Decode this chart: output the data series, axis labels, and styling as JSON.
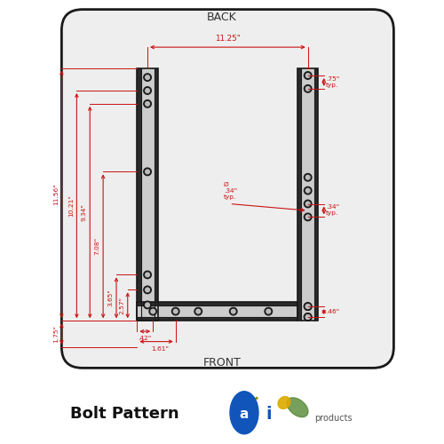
{
  "bg_color": "#ffffff",
  "dark_color": "#1a1a1a",
  "bracket_dark": "#2a2a2a",
  "bracket_mid": "#888888",
  "bracket_light": "#cccccc",
  "red": "#cc1111",
  "back_label": "BACK",
  "front_label": "FRONT",
  "title": "Bolt Pattern",
  "dim_width": "11.25\"",
  "dim_h1": "11.56\"",
  "dim_h2": "10.21\"",
  "dim_h3": "9.34\"",
  "dim_h4": "7.08\"",
  "dim_h5": "3.65\"",
  "dim_h6": "2.57\"",
  "dim_h7": "1.75\"",
  "dim_d1": ".42\"",
  "dim_d2": "1.61\"",
  "dim_d3": ".46\"",
  "dim_d4": ".75\"\ntyp.",
  "dim_d5": ".34\"\ntyp.",
  "dim_d6": "Ø\n.34\"\ntyp."
}
